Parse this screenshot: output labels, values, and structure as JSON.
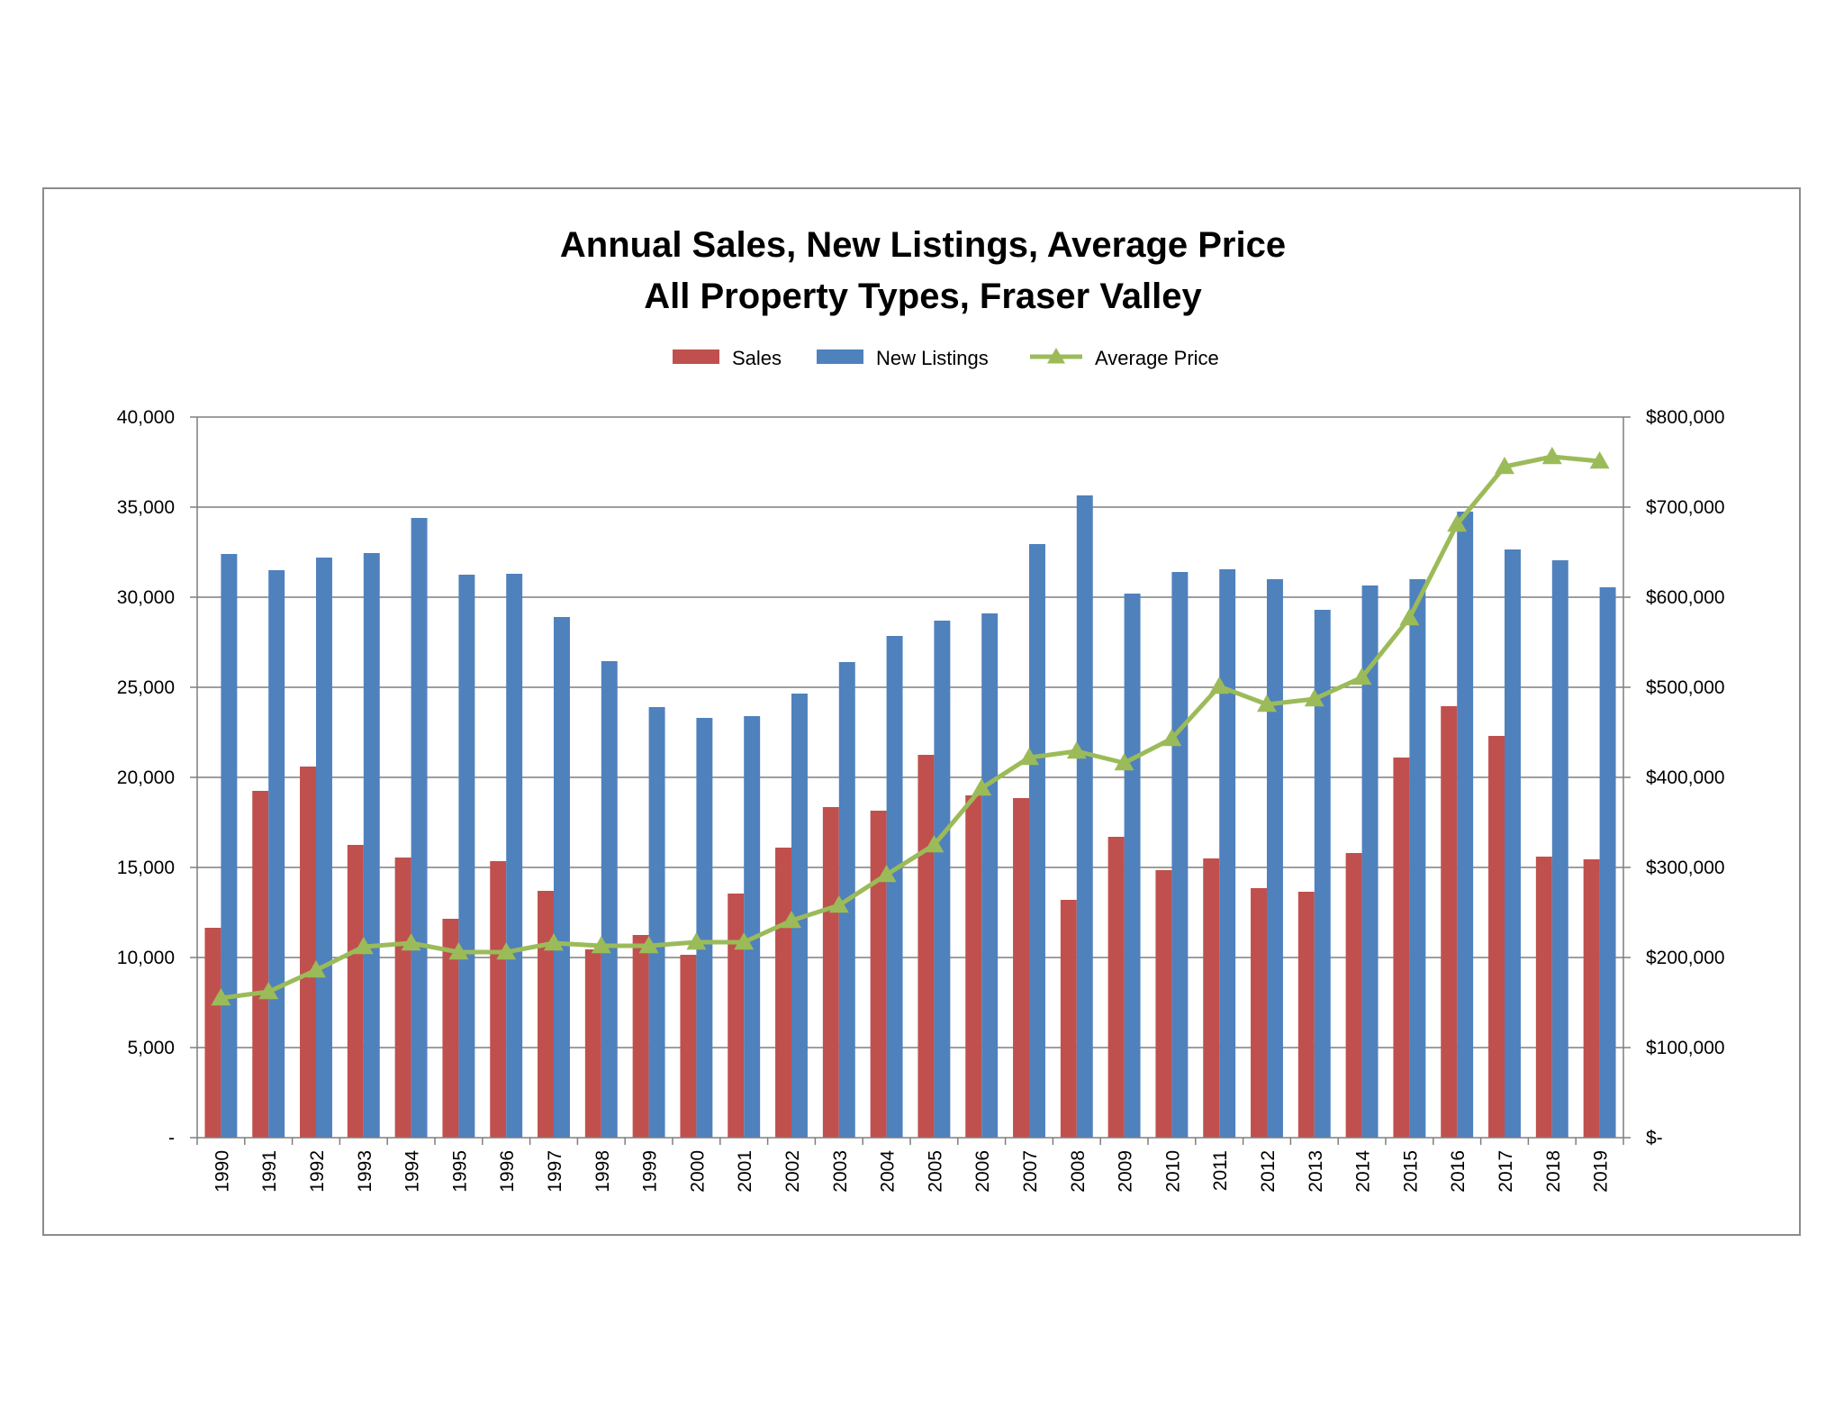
{
  "chart_data": {
    "type": "bar",
    "title": "Annual Sales, New Listings, Average Price",
    "subtitle": "All Property Types, Fraser Valley",
    "legend_position": "top",
    "grid": true,
    "categories": [
      "1990",
      "1991",
      "1992",
      "1993",
      "1994",
      "1995",
      "1996",
      "1997",
      "1998",
      "1999",
      "2000",
      "2001",
      "2002",
      "2003",
      "2004",
      "2005",
      "2006",
      "2007",
      "2008",
      "2009",
      "2010",
      "2011",
      "2012",
      "2013",
      "2014",
      "2015",
      "2016",
      "2017",
      "2018",
      "2019"
    ],
    "series": [
      {
        "name": "Sales",
        "type": "bar",
        "axis": "left",
        "color": "#c0504d",
        "values": [
          11650,
          19250,
          20600,
          16250,
          15550,
          12150,
          15350,
          13700,
          10450,
          11250,
          10150,
          13550,
          16100,
          18350,
          18150,
          21250,
          19000,
          18850,
          13200,
          16700,
          14850,
          15500,
          13850,
          13650,
          15800,
          21100,
          23950,
          22300,
          15600,
          15450
        ]
      },
      {
        "name": "New Listings",
        "type": "bar",
        "axis": "left",
        "color": "#4f81bd",
        "values": [
          32400,
          31500,
          32200,
          32450,
          34400,
          31250,
          31300,
          28900,
          26450,
          23900,
          23300,
          23400,
          24650,
          26400,
          27850,
          28700,
          29100,
          32950,
          35650,
          30200,
          31400,
          31550,
          31000,
          29300,
          30650,
          31000,
          34750,
          32650,
          32050,
          30550
        ]
      },
      {
        "name": "Average Price",
        "type": "line",
        "axis": "right",
        "color": "#9bbb59",
        "values": [
          155000,
          162000,
          186000,
          212000,
          216000,
          206000,
          206000,
          216000,
          213000,
          213000,
          217000,
          217000,
          241000,
          258000,
          292000,
          325000,
          388000,
          422000,
          429000,
          416000,
          443000,
          501000,
          481000,
          487000,
          511000,
          577000,
          681000,
          745000,
          756000,
          751000
        ]
      }
    ],
    "left_axis": {
      "ylim": [
        0,
        40000
      ],
      "ticks": [
        0,
        5000,
        10000,
        15000,
        20000,
        25000,
        30000,
        35000,
        40000
      ],
      "tick_labels": [
        "-",
        "5,000",
        "10,000",
        "15,000",
        "20,000",
        "25,000",
        "30,000",
        "35,000",
        "40,000"
      ]
    },
    "right_axis": {
      "ylim": [
        0,
        800000
      ],
      "ticks": [
        0,
        100000,
        200000,
        300000,
        400000,
        500000,
        600000,
        700000,
        800000
      ],
      "tick_labels": [
        "$-",
        "$100,000",
        "$200,000",
        "$300,000",
        "$400,000",
        "$500,000",
        "$600,000",
        "$700,000",
        "$800,000"
      ]
    }
  }
}
